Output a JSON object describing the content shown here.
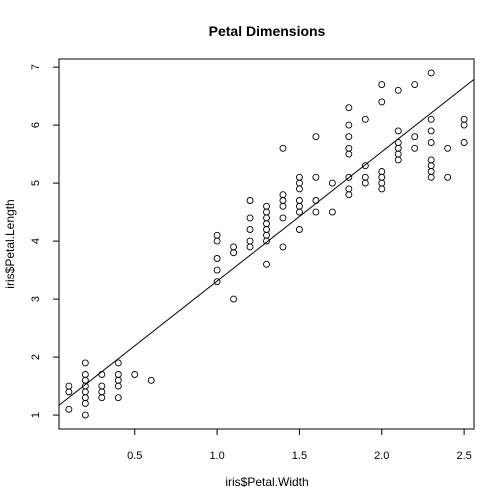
{
  "chart_data": {
    "type": "scatter",
    "title": "Petal Dimensions",
    "xlabel": "iris$Petal.Width",
    "ylabel": "iris$Petal.Length",
    "xlim": [
      0.04,
      2.56
    ],
    "ylim": [
      0.76,
      7.14
    ],
    "x_ticks": [
      0.5,
      1.0,
      1.5,
      2.0,
      2.5
    ],
    "x_tick_labels": [
      "0.5",
      "1.0",
      "1.5",
      "2.0",
      "2.5"
    ],
    "y_ticks": [
      1,
      2,
      3,
      4,
      5,
      6,
      7
    ],
    "y_tick_labels": [
      "1",
      "2",
      "3",
      "4",
      "5",
      "6",
      "7"
    ],
    "grid": false,
    "point_style": "open-circle",
    "regression_line": {
      "intercept": 1.08,
      "slope": 2.23
    },
    "series": [
      {
        "points": [
          [
            0.1,
            1.1
          ],
          [
            0.1,
            1.4
          ],
          [
            0.1,
            1.5
          ],
          [
            0.2,
            1.0
          ],
          [
            0.2,
            1.2
          ],
          [
            0.2,
            1.3
          ],
          [
            0.2,
            1.4
          ],
          [
            0.2,
            1.5
          ],
          [
            0.2,
            1.6
          ],
          [
            0.2,
            1.7
          ],
          [
            0.2,
            1.9
          ],
          [
            0.3,
            1.3
          ],
          [
            0.3,
            1.4
          ],
          [
            0.3,
            1.5
          ],
          [
            0.3,
            1.7
          ],
          [
            0.4,
            1.3
          ],
          [
            0.4,
            1.5
          ],
          [
            0.4,
            1.6
          ],
          [
            0.4,
            1.7
          ],
          [
            0.4,
            1.9
          ],
          [
            0.5,
            1.7
          ],
          [
            0.6,
            1.6
          ],
          [
            1.0,
            3.3
          ],
          [
            1.0,
            3.5
          ],
          [
            1.0,
            3.7
          ],
          [
            1.0,
            4.0
          ],
          [
            1.0,
            4.1
          ],
          [
            1.1,
            3.0
          ],
          [
            1.1,
            3.8
          ],
          [
            1.1,
            3.9
          ],
          [
            1.2,
            3.9
          ],
          [
            1.2,
            4.0
          ],
          [
            1.2,
            4.2
          ],
          [
            1.2,
            4.4
          ],
          [
            1.2,
            4.7
          ],
          [
            1.3,
            3.6
          ],
          [
            1.3,
            4.0
          ],
          [
            1.3,
            4.1
          ],
          [
            1.3,
            4.2
          ],
          [
            1.3,
            4.3
          ],
          [
            1.3,
            4.4
          ],
          [
            1.3,
            4.5
          ],
          [
            1.3,
            4.6
          ],
          [
            1.4,
            3.9
          ],
          [
            1.4,
            4.4
          ],
          [
            1.4,
            4.6
          ],
          [
            1.4,
            4.7
          ],
          [
            1.4,
            4.8
          ],
          [
            1.4,
            5.6
          ],
          [
            1.5,
            4.2
          ],
          [
            1.5,
            4.5
          ],
          [
            1.5,
            4.6
          ],
          [
            1.5,
            4.7
          ],
          [
            1.5,
            4.9
          ],
          [
            1.5,
            5.0
          ],
          [
            1.5,
            5.1
          ],
          [
            1.6,
            4.5
          ],
          [
            1.6,
            4.7
          ],
          [
            1.6,
            5.1
          ],
          [
            1.6,
            5.8
          ],
          [
            1.7,
            4.5
          ],
          [
            1.7,
            5.0
          ],
          [
            1.8,
            4.8
          ],
          [
            1.8,
            4.9
          ],
          [
            1.8,
            5.1
          ],
          [
            1.8,
            5.5
          ],
          [
            1.8,
            5.6
          ],
          [
            1.8,
            5.8
          ],
          [
            1.8,
            6.0
          ],
          [
            1.8,
            6.3
          ],
          [
            1.9,
            5.0
          ],
          [
            1.9,
            5.1
          ],
          [
            1.9,
            5.3
          ],
          [
            1.9,
            6.1
          ],
          [
            2.0,
            4.9
          ],
          [
            2.0,
            5.0
          ],
          [
            2.0,
            5.1
          ],
          [
            2.0,
            5.2
          ],
          [
            2.0,
            6.4
          ],
          [
            2.0,
            6.7
          ],
          [
            2.1,
            5.4
          ],
          [
            2.1,
            5.5
          ],
          [
            2.1,
            5.6
          ],
          [
            2.1,
            5.7
          ],
          [
            2.1,
            5.9
          ],
          [
            2.1,
            6.6
          ],
          [
            2.2,
            5.6
          ],
          [
            2.2,
            5.8
          ],
          [
            2.2,
            6.7
          ],
          [
            2.3,
            5.1
          ],
          [
            2.3,
            5.2
          ],
          [
            2.3,
            5.3
          ],
          [
            2.3,
            5.4
          ],
          [
            2.3,
            5.7
          ],
          [
            2.3,
            5.9
          ],
          [
            2.3,
            6.1
          ],
          [
            2.3,
            6.9
          ],
          [
            2.4,
            5.1
          ],
          [
            2.4,
            5.6
          ],
          [
            2.5,
            5.7
          ],
          [
            2.5,
            6.0
          ],
          [
            2.5,
            6.1
          ]
        ]
      }
    ]
  }
}
